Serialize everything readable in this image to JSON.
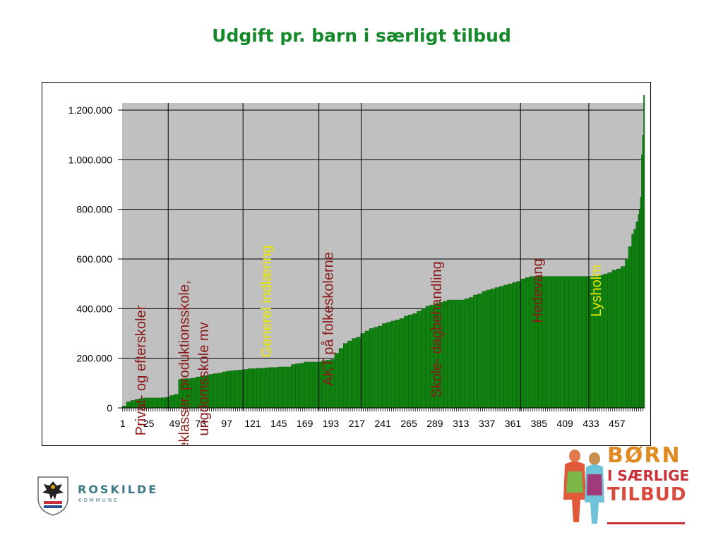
{
  "slide": {
    "title": "Udgift pr. barn i særligt tilbud"
  },
  "chart_data": {
    "type": "bar",
    "title": "Udgift pr. barn i særligt tilbud",
    "xlabel": "",
    "ylabel": "",
    "xlim": [
      1,
      482
    ],
    "ylim": [
      0,
      1200000
    ],
    "grid": true,
    "x_ticks": [
      "1",
      "25",
      "49",
      "73",
      "97",
      "121",
      "145",
      "169",
      "193",
      "217",
      "241",
      "265",
      "289",
      "313",
      "337",
      "361",
      "385",
      "409",
      "433",
      "457"
    ],
    "y_ticks": [
      "0",
      "200.000",
      "400.000",
      "600.000",
      "800.000",
      "1.000.000",
      "1.200.000"
    ],
    "y_tick_values": [
      0,
      200000,
      400000,
      600000,
      800000,
      1000000,
      1200000
    ],
    "series": [
      {
        "color": "#108010",
        "x": [
          1,
          5,
          9,
          13,
          17,
          21,
          25,
          29,
          33,
          37,
          41,
          45,
          49,
          53,
          57,
          61,
          65,
          69,
          73,
          77,
          81,
          85,
          89,
          93,
          97,
          101,
          105,
          109,
          113,
          117,
          121,
          125,
          129,
          133,
          137,
          141,
          145,
          149,
          153,
          157,
          161,
          165,
          169,
          173,
          177,
          181,
          185,
          189,
          193,
          197,
          201,
          205,
          209,
          213,
          217,
          221,
          225,
          229,
          233,
          237,
          241,
          245,
          249,
          253,
          257,
          261,
          265,
          269,
          273,
          277,
          281,
          285,
          289,
          293,
          297,
          301,
          305,
          309,
          313,
          317,
          321,
          325,
          329,
          333,
          337,
          341,
          345,
          349,
          353,
          357,
          361,
          365,
          369,
          373,
          377,
          381,
          385,
          389,
          393,
          397,
          401,
          405,
          409,
          413,
          417,
          421,
          425,
          429,
          433,
          437,
          441,
          445,
          449,
          453,
          457,
          461,
          465,
          468,
          471,
          473,
          475,
          477,
          478,
          479,
          480,
          481,
          482
        ],
        "values": [
          8000,
          25000,
          30000,
          35000,
          38000,
          40000,
          40000,
          40000,
          40000,
          41000,
          43000,
          50000,
          55000,
          115000,
          118000,
          118000,
          120000,
          125000,
          128000,
          130000,
          135000,
          138000,
          140000,
          145000,
          148000,
          150000,
          152000,
          153000,
          155000,
          158000,
          158000,
          160000,
          160000,
          162000,
          163000,
          163000,
          165000,
          165000,
          165000,
          175000,
          178000,
          180000,
          185000,
          185000,
          185000,
          185000,
          190000,
          192000,
          195000,
          220000,
          240000,
          260000,
          270000,
          280000,
          285000,
          300000,
          310000,
          320000,
          325000,
          330000,
          340000,
          345000,
          350000,
          355000,
          360000,
          370000,
          375000,
          380000,
          390000,
          400000,
          410000,
          415000,
          420000,
          425000,
          430000,
          435000,
          435000,
          435000,
          435000,
          440000,
          445000,
          455000,
          460000,
          470000,
          475000,
          480000,
          485000,
          490000,
          495000,
          500000,
          505000,
          510000,
          520000,
          525000,
          530000,
          530000,
          530000,
          530000,
          530000,
          530000,
          530000,
          530000,
          530000,
          530000,
          530000,
          530000,
          530000,
          530000,
          530000,
          530000,
          535000,
          540000,
          545000,
          555000,
          560000,
          570000,
          600000,
          650000,
          700000,
          720000,
          750000,
          780000,
          800000,
          850000,
          1020000,
          1100000,
          1260000
        ]
      }
    ],
    "group_boundaries": [
      43,
      112,
      182,
      221,
      368,
      431
    ],
    "annotations": [
      {
        "text": "Privat- og efterskoler",
        "color": "#8b1a1a",
        "x": 22
      },
      {
        "text": "Læseklasser, produktionsskole,",
        "color": "#8b1a1a",
        "x": 62
      },
      {
        "text": "ungdomsskole mv",
        "color": "#8b1a1a",
        "x": 80
      },
      {
        "text": "Generel indlæring",
        "color": "#e8e800",
        "x": 138
      },
      {
        "text": "AKT på folkeskolerne",
        "color": "#8b1a1a",
        "x": 195
      },
      {
        "text": "Skole- dagbehandling",
        "color": "#8b1a1a",
        "x": 295
      },
      {
        "text": "Hedevang",
        "color": "#8b1a1a",
        "x": 388
      },
      {
        "text": "Lysholm",
        "color": "#e8e800",
        "x": 442
      }
    ],
    "plot_background": "#c0c0c0"
  },
  "logos": {
    "roskilde": {
      "name": "ROSKILDE",
      "subtitle": "KOMMUNE",
      "icon": "coat-of-arms-icon"
    },
    "boern": {
      "line1": "BØRN",
      "line2": "I SÆRLIGE",
      "line3": "TILBUD",
      "icon": "children-figures-icon"
    }
  }
}
